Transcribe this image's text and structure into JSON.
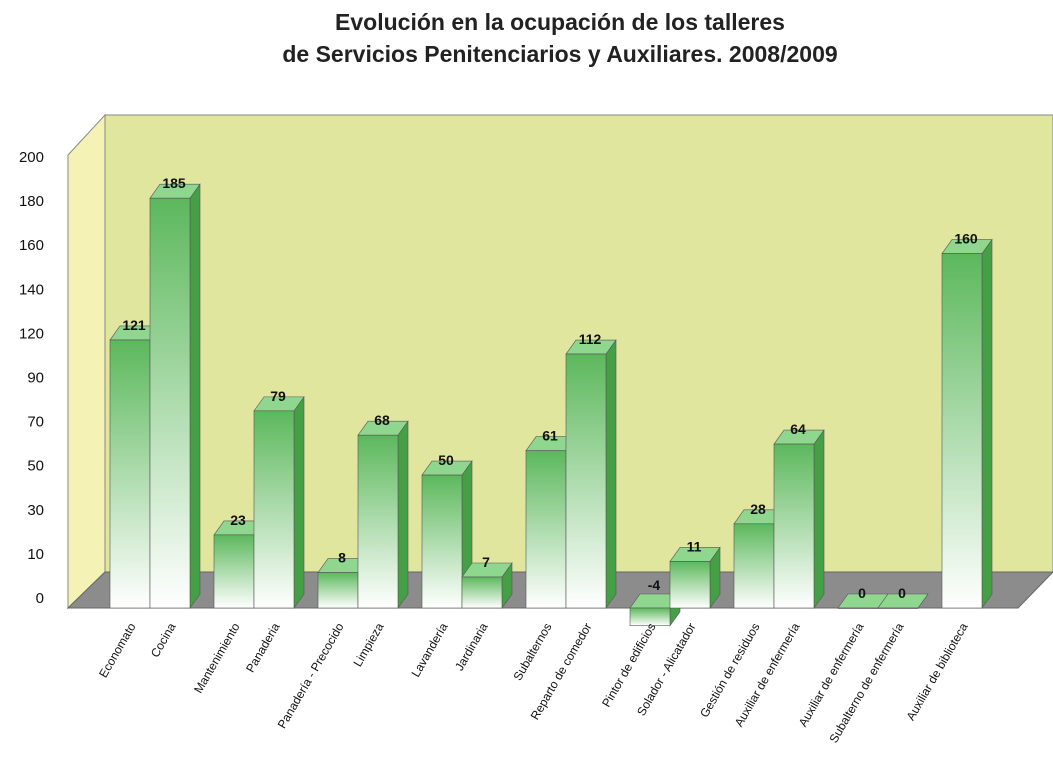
{
  "chart_data": {
    "type": "bar3d",
    "title": [
      "Evolución en la ocupación de los talleres",
      "de Servicios Penitenciarios y Auxiliares. 2008/2009"
    ],
    "categories": [
      "Economato",
      "Cocina",
      "Mantenimiento",
      "Panaderia",
      "Panadería - Precocido",
      "Limpieza",
      "Lavandería",
      "Jardinaria",
      "Subalternos",
      "Reparto de comedor",
      "Pintor de edificios",
      "Solador - Alicatador",
      "Gestión de residuos",
      "Auxiliar de enfermería",
      "Auxiliar de enfermería",
      "Subalterno de enfermería",
      "Auxiliar de biblioteca"
    ],
    "values": [
      121,
      185,
      23,
      79,
      8,
      68,
      50,
      7,
      61,
      112,
      -4,
      11,
      28,
      64,
      0,
      0,
      160
    ],
    "color": "#5cb85c",
    "yticks": [
      0,
      10,
      30,
      50,
      70,
      90,
      120,
      140,
      160,
      180,
      200
    ],
    "grid": false
  }
}
